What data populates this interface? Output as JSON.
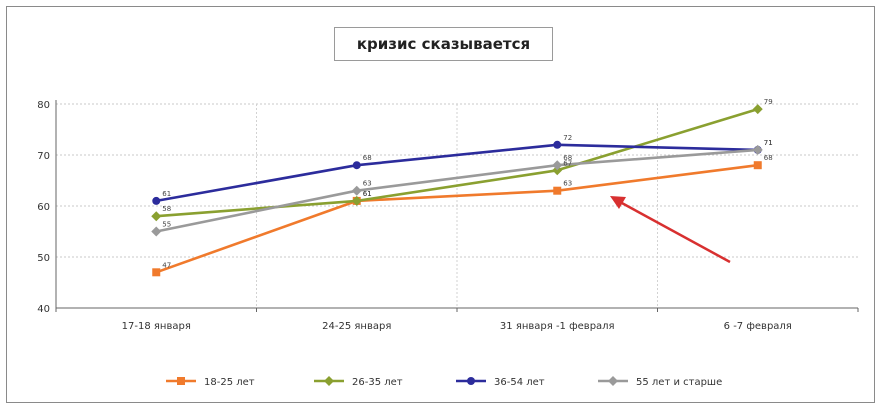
{
  "chart_data": {
    "type": "line",
    "title": "кризис сказывается",
    "categories": [
      "17-18 января",
      "24-25 января",
      "31 января -1 февраля",
      "6 -7 февраля"
    ],
    "ylim": [
      40,
      80
    ],
    "yticks": [
      40,
      50,
      60,
      70,
      80
    ],
    "grid": true,
    "legend": "bottom",
    "series": [
      {
        "name": "18-25 лет",
        "color": "#f07a2c",
        "marker": "square",
        "values": [
          47,
          61,
          63,
          68
        ]
      },
      {
        "name": "26-35 лет",
        "color": "#8aa030",
        "marker": "diamond",
        "values": [
          58,
          61,
          67,
          79
        ]
      },
      {
        "name": "36-54 лет",
        "color": "#2c2c9c",
        "marker": "circle",
        "values": [
          61,
          68,
          72,
          71
        ]
      },
      {
        "name": "55 лет и старше",
        "color": "#9a9a9a",
        "marker": "diamond",
        "values": [
          55,
          63,
          68,
          71
        ]
      }
    ],
    "annotations": [
      {
        "type": "arrow",
        "color": "#d83030"
      }
    ]
  }
}
